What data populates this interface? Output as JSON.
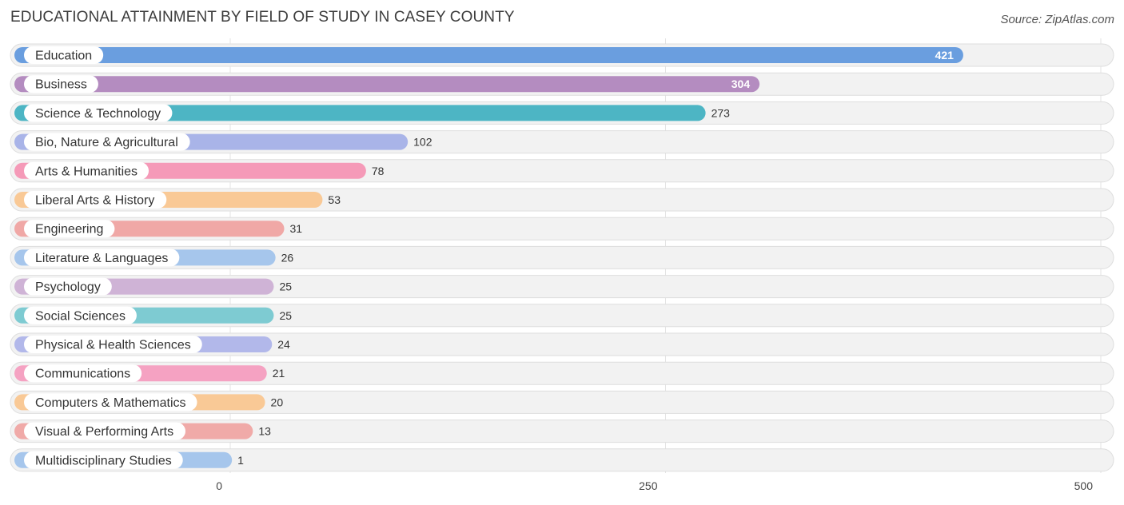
{
  "title": "EDUCATIONAL ATTAINMENT BY FIELD OF STUDY IN CASEY COUNTY",
  "source": "Source: ZipAtlas.com",
  "chart_data": {
    "type": "bar",
    "orientation": "horizontal",
    "categories": [
      "Education",
      "Business",
      "Science & Technology",
      "Bio, Nature & Agricultural",
      "Arts & Humanities",
      "Liberal Arts & History",
      "Engineering",
      "Literature & Languages",
      "Psychology",
      "Social Sciences",
      "Physical & Health Sciences",
      "Communications",
      "Computers & Mathematics",
      "Visual & Performing Arts",
      "Multidisciplinary Studies"
    ],
    "values": [
      421,
      304,
      273,
      102,
      78,
      53,
      31,
      26,
      25,
      25,
      24,
      21,
      20,
      13,
      1
    ],
    "value_labels": [
      "421",
      "304",
      "273",
      "102",
      "78",
      "53",
      "31",
      "26",
      "25",
      "25",
      "24",
      "21",
      "20",
      "13",
      "1"
    ],
    "colors": [
      "#6a9edf",
      "#b48cc0",
      "#4db5c4",
      "#a9b4e8",
      "#f59ab8",
      "#f9c996",
      "#f0a8a6",
      "#a6c6ec",
      "#cfb3d6",
      "#7ecbd2",
      "#b2b8ea",
      "#f5a2c2",
      "#f9c996",
      "#f0aaa8",
      "#a6c6ec"
    ],
    "xlim": [
      0,
      500
    ],
    "xticks": [
      0,
      250,
      500
    ],
    "xtick_labels": [
      "0",
      "250",
      "500"
    ],
    "grid": true
  }
}
